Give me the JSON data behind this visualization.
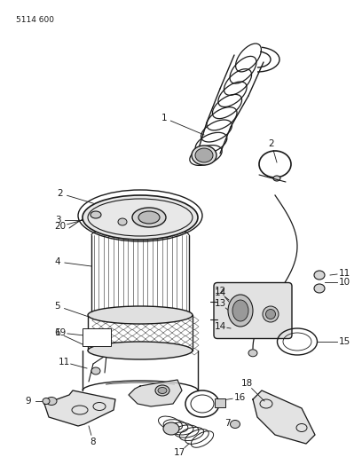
{
  "title_code": "5114 600",
  "bg_color": "#ffffff",
  "line_color": "#1a1a1a",
  "fig_width": 4.08,
  "fig_height": 5.33,
  "dpi": 100
}
